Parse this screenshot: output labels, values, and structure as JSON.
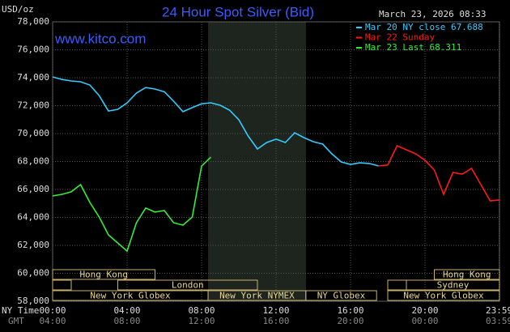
{
  "chart_data": {
    "type": "line",
    "title": "24 Hour Spot Silver (Bid)",
    "timestamp": "March 23, 2026 08:33",
    "watermark": "www.kitco.com",
    "ylabel": "USD/oz",
    "xlabel": "NY Time",
    "x2label": "GMT",
    "x": [
      0,
      0.5,
      1,
      1.5,
      2,
      2.5,
      3,
      3.5,
      4,
      4.5,
      5,
      5.5,
      6,
      6.5,
      7,
      7.5,
      8,
      8.5,
      9,
      9.5,
      10,
      10.5,
      11,
      11.5,
      12,
      12.5,
      13,
      13.5,
      14,
      14.5,
      15,
      15.5,
      16,
      16.5,
      17,
      17.5,
      18,
      18.5,
      19,
      19.5,
      20,
      20.5,
      21,
      21.5,
      22,
      22.5,
      23,
      23.5,
      24
    ],
    "xlim": [
      0,
      24
    ],
    "xticks": [
      {
        "value": 0,
        "label": "00:00"
      },
      {
        "value": 4,
        "label": "04:00"
      },
      {
        "value": 8,
        "label": "08:00"
      },
      {
        "value": 12,
        "label": "12:00"
      },
      {
        "value": 16,
        "label": "16:00"
      },
      {
        "value": 20,
        "label": "20:00"
      },
      {
        "value": 23.983,
        "label": "23:59"
      }
    ],
    "x2ticks": [
      "04:00",
      "08:00",
      "12:00",
      "16:00",
      "20:00",
      "00:00",
      "03:59"
    ],
    "ylim": [
      58,
      78
    ],
    "yticks": [
      {
        "value": 58,
        "label": "58,000"
      },
      {
        "value": 60,
        "label": "60,000"
      },
      {
        "value": 62,
        "label": "62,000"
      },
      {
        "value": 64,
        "label": "64,000"
      },
      {
        "value": 66,
        "label": "66,000"
      },
      {
        "value": 68,
        "label": "68,000"
      },
      {
        "value": 70,
        "label": "70,000"
      },
      {
        "value": 72,
        "label": "72,000"
      },
      {
        "value": 74,
        "label": "74,000"
      },
      {
        "value": 76,
        "label": "76,000"
      },
      {
        "value": 78,
        "label": "78,000"
      }
    ],
    "grid": true,
    "series": [
      {
        "name": "Mar 20 NY close 67.688",
        "color": "#33ccff",
        "values": [
          74.06,
          73.88,
          73.77,
          73.71,
          73.48,
          72.72,
          71.62,
          71.74,
          72.2,
          72.9,
          73.3,
          73.19,
          73.0,
          72.32,
          71.57,
          71.86,
          72.14,
          72.2,
          72.03,
          71.68,
          70.99,
          69.83,
          68.9,
          69.36,
          69.6,
          69.36,
          70.06,
          69.71,
          69.42,
          69.25,
          68.55,
          67.97,
          67.8,
          67.91,
          67.86,
          67.688,
          null,
          null,
          null,
          null,
          null,
          null,
          null,
          null,
          null,
          null,
          null,
          null,
          null
        ]
      },
      {
        "name": "Mar 22 Sunday",
        "color": "#ff1a1a",
        "values": [
          null,
          null,
          null,
          null,
          null,
          null,
          null,
          null,
          null,
          null,
          null,
          null,
          null,
          null,
          null,
          null,
          null,
          null,
          null,
          null,
          null,
          null,
          null,
          null,
          null,
          null,
          null,
          null,
          null,
          null,
          null,
          null,
          null,
          null,
          null,
          67.69,
          67.75,
          69.13,
          68.84,
          68.55,
          68.09,
          67.39,
          65.65,
          67.22,
          67.1,
          67.51,
          66.35,
          65.19,
          65.25
        ]
      },
      {
        "name": "Mar 23 Last 68.311",
        "color": "#33ee33",
        "values": [
          65.54,
          65.65,
          65.83,
          66.35,
          65.07,
          64.03,
          62.75,
          62.17,
          61.59,
          63.62,
          64.67,
          64.38,
          64.49,
          63.62,
          63.45,
          64.03,
          67.68,
          68.311,
          null,
          null,
          null,
          null,
          null,
          null,
          null,
          null,
          null,
          null,
          null,
          null,
          null,
          null,
          null,
          null,
          null,
          null,
          null,
          null,
          null,
          null,
          null,
          null,
          null,
          null,
          null,
          null,
          null,
          null,
          null
        ]
      }
    ],
    "sessions": [
      "Hong Kong",
      "Hong Kong",
      "London",
      "Sydney",
      "New York Globex",
      "New York NYMEX",
      "NY Globex",
      "New York Globex"
    ]
  }
}
